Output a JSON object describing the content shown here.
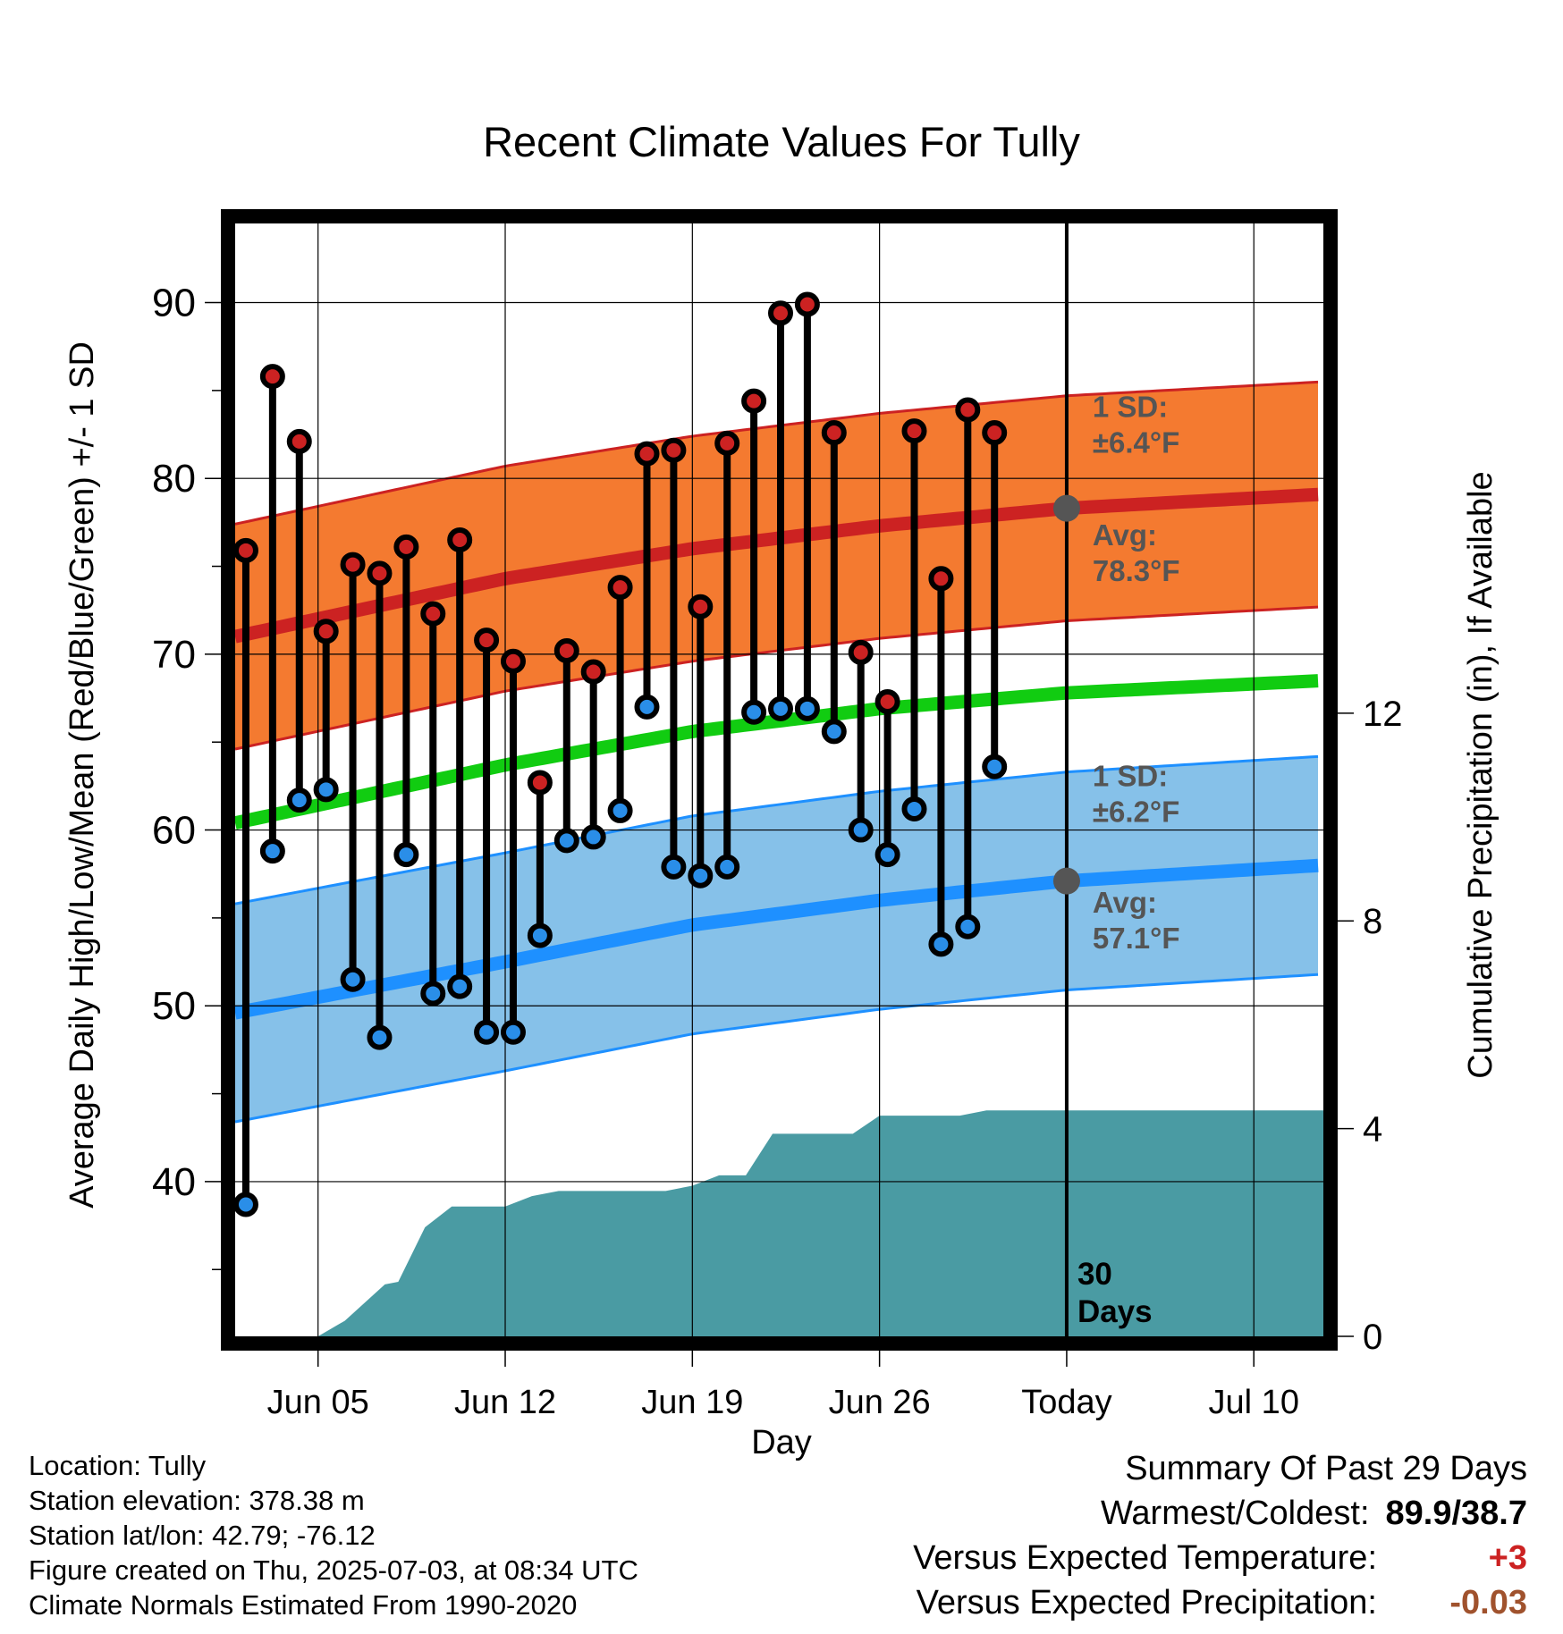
{
  "chart_data": {
    "type": "line",
    "title": "Recent Climate Values For Tully",
    "xlabel": "Day",
    "ylabel_left": "Average Daily High/Low/Mean (Red/Blue/Green) +/- 1 SD",
    "ylabel_right": "Cumulative Precipitation (in), If Available",
    "x_ticks": [
      {
        "day": 5,
        "label": "Jun 05"
      },
      {
        "day": 12,
        "label": "Jun 12"
      },
      {
        "day": 19,
        "label": "Jun 19"
      },
      {
        "day": 26,
        "label": "Jun 26"
      },
      {
        "day": 33,
        "label": "Today"
      },
      {
        "day": 40,
        "label": "Jul 10"
      }
    ],
    "x_range_days": [
      1.9,
      42.6
    ],
    "y_left": {
      "range": [
        31.2,
        94.5
      ],
      "ticks": [
        40,
        50,
        60,
        70,
        80,
        90
      ]
    },
    "y_right": {
      "range": [
        0,
        21.43
      ],
      "ticks": [
        0,
        4,
        8,
        12
      ]
    },
    "grid": true,
    "today_line_day": 33,
    "today_label": "30\nDays",
    "days": [
      2,
      3,
      4,
      5,
      6,
      7,
      8,
      9,
      10,
      11,
      12,
      13,
      14,
      15,
      16,
      17,
      18,
      19,
      20,
      21,
      22,
      23,
      24,
      25,
      26,
      27,
      28,
      29,
      30,
      31,
      32,
      33,
      34,
      35,
      36,
      37,
      38,
      39,
      40,
      41,
      42,
      43
    ],
    "series": [
      {
        "name": "High",
        "color": "#cc2222",
        "type": "points",
        "x": [
          2.3,
          3.3,
          4.3,
          5.3,
          6.3,
          7.3,
          8.3,
          9.3,
          10.3,
          11.3,
          12.3,
          13.3,
          14.3,
          15.3,
          16.3,
          17.3,
          18.3,
          19.3,
          20.3,
          21.3,
          22.3,
          23.3,
          24.3,
          25.3,
          26.3,
          27.3,
          28.3,
          29.3,
          30.3,
          31.3
        ],
        "y": [
          75.9,
          85.8,
          82.1,
          71.3,
          75.1,
          74.6,
          76.1,
          72.3,
          76.5,
          70.8,
          69.6,
          62.7,
          70.2,
          69.0,
          73.8,
          81.4,
          81.6,
          72.7,
          82.0,
          84.4,
          89.4,
          89.9,
          82.6,
          70.1,
          67.3,
          82.7,
          74.3,
          83.9,
          82.6,
          null
        ]
      },
      {
        "name": "Low",
        "color": "#2a8ee8",
        "type": "points",
        "x": [
          2.3,
          3.3,
          4.3,
          5.3,
          6.3,
          7.3,
          8.3,
          9.3,
          10.3,
          11.3,
          12.3,
          13.3,
          14.3,
          15.3,
          16.3,
          17.3,
          18.3,
          19.3,
          20.3,
          21.3,
          22.3,
          23.3,
          24.3,
          25.3,
          26.3,
          27.3,
          28.3,
          29.3,
          30.3,
          31.3
        ],
        "y": [
          38.7,
          58.8,
          61.7,
          62.3,
          51.5,
          48.2,
          58.6,
          50.7,
          51.1,
          48.5,
          48.5,
          54.0,
          59.4,
          59.6,
          61.1,
          67.0,
          57.9,
          57.4,
          57.9,
          66.7,
          66.9,
          66.9,
          65.6,
          60.0,
          58.6,
          61.2,
          53.5,
          54.5,
          63.6,
          null
        ]
      },
      {
        "name": "Normal High",
        "color": "#cc2222",
        "x": [
          1.9,
          12,
          19,
          26,
          33,
          42.6
        ],
        "y": [
          71.0,
          74.3,
          76.0,
          77.3,
          78.3,
          79.1
        ],
        "sd": 6.4
      },
      {
        "name": "Normal Mean",
        "color": "#11cc11",
        "x": [
          1.9,
          12,
          19,
          26,
          33,
          42.6
        ],
        "y": [
          60.4,
          63.7,
          65.6,
          66.9,
          67.8,
          68.5
        ]
      },
      {
        "name": "Normal Low",
        "color": "#1e90ff",
        "x": [
          1.9,
          12,
          19,
          26,
          33,
          42.6
        ],
        "y": [
          49.6,
          52.5,
          54.6,
          56.0,
          57.1,
          58.0
        ],
        "sd": 6.2
      },
      {
        "name": "Cumulative Precipitation",
        "color": "#4a9ba3",
        "type": "area",
        "axis": "right",
        "x": [
          5,
          6,
          7.5,
          8,
          9,
          10,
          11,
          12,
          13,
          14,
          15,
          16,
          17,
          18,
          19,
          20,
          21,
          22,
          23,
          24,
          25,
          26,
          27,
          28,
          29,
          30,
          31,
          33,
          42.6
        ],
        "y": [
          0,
          0.3,
          1.0,
          1.05,
          2.1,
          2.5,
          2.5,
          2.5,
          2.7,
          2.8,
          2.8,
          2.8,
          2.8,
          2.8,
          2.9,
          3.1,
          3.1,
          3.9,
          3.9,
          3.9,
          3.9,
          4.25,
          4.25,
          4.25,
          4.25,
          4.35,
          4.35,
          4.35,
          4.35
        ]
      }
    ],
    "annotations": [
      {
        "text_line1": "1 SD:",
        "text_line2": "±6.4",
        "unit": "°F",
        "anchor_day": 33.5,
        "anchor_y": 83.5
      },
      {
        "text_line1": "Avg:",
        "text_line2": "78.3",
        "unit": "°F",
        "anchor_day": 33.5,
        "anchor_y": 76.2,
        "marker_y": 78.3
      },
      {
        "text_line1": "1 SD:",
        "text_line2": "±6.2",
        "unit": "°F",
        "anchor_day": 33.5,
        "anchor_y": 62.5
      },
      {
        "text_line1": "Avg:",
        "text_line2": "57.1",
        "unit": "°F",
        "anchor_day": 33.5,
        "anchor_y": 55.3,
        "marker_y": 57.1
      }
    ]
  },
  "info": {
    "location": "Location: Tully",
    "elevation": "Station elevation: 378.38 m",
    "latlon": "Station lat/lon: 42.79; -76.12",
    "created": "Figure created on Thu, 2025-07-03, at 08:34 UTC",
    "normals": "Climate Normals Estimated From 1990-2020"
  },
  "summary": {
    "title": "Summary Of Past 29 Days",
    "warmest_label": "Warmest/Coldest:",
    "warmest_value": "89.9/38.7",
    "temp_label": "Versus Expected Temperature:",
    "temp_value": "+3",
    "temp_color": "#cc2222",
    "precip_label": "Versus Expected Precipitation:",
    "precip_value": "-0.03",
    "precip_color": "#a0522d"
  }
}
